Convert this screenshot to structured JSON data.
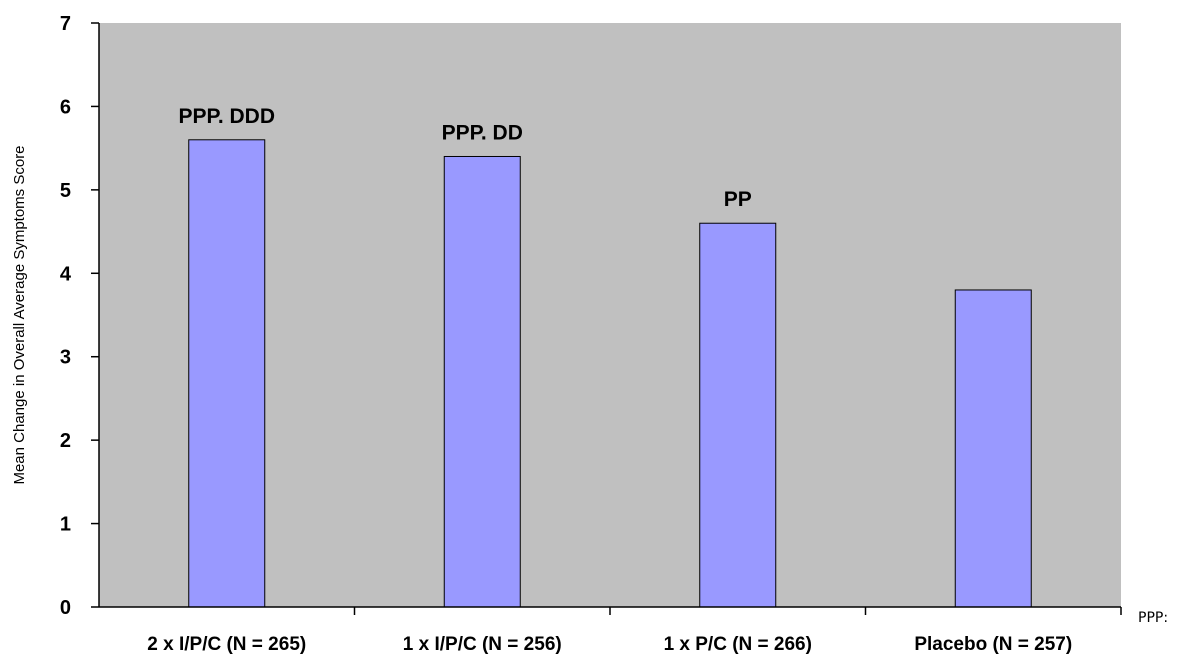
{
  "colors": {
    "plot_background": "#c0c0c0",
    "bar_fill": "#9999ff",
    "bar_stroke": "#000000",
    "axis": "#000000",
    "text": "#000000"
  },
  "side_note": "PPP:",
  "chart_data": {
    "type": "bar",
    "title": "",
    "xlabel": "",
    "ylabel": "Mean Change in Overall Average Symptoms Score",
    "ylim": [
      0,
      7
    ],
    "yticks": [
      0,
      1,
      2,
      3,
      4,
      5,
      6,
      7
    ],
    "grid": false,
    "legend": "none",
    "categories": [
      "2 x I/P/C (N = 265)",
      "1 x I/P/C (N = 256)",
      "1 x P/C (N = 266)",
      "Placebo (N = 257)"
    ],
    "values": [
      5.6,
      5.4,
      4.6,
      3.8
    ],
    "annotations": [
      "PPP. DDD",
      "PPP. DD",
      "PP",
      ""
    ]
  }
}
